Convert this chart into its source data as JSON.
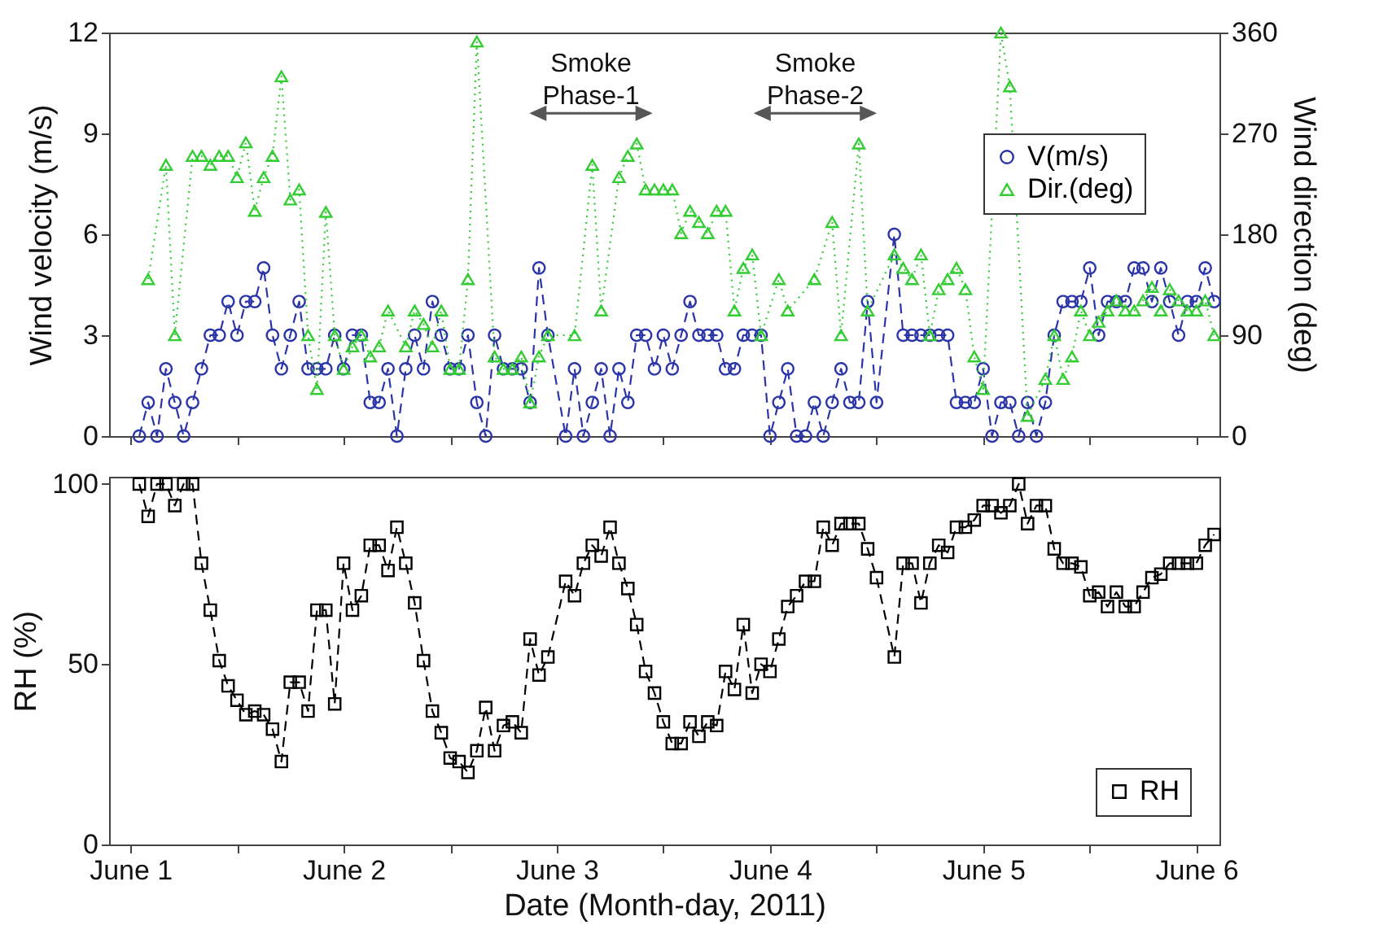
{
  "chart_data": [
    {
      "type": "line",
      "ylabel": "Wind velocity (m/s)",
      "y2label": "Wind direction (deg)",
      "xlim": [
        "2011-05-31T21:36",
        "2011-06-06T02:36"
      ],
      "xticks": [
        {
          "value": "2011-06-01T00:00",
          "label": null
        },
        {
          "value": "2011-06-01T12:00",
          "label": null
        },
        {
          "value": "2011-06-02T00:00",
          "label": null
        },
        {
          "value": "2011-06-02T12:00",
          "label": null
        },
        {
          "value": "2011-06-03T00:00",
          "label": null
        },
        {
          "value": "2011-06-03T12:00",
          "label": null
        },
        {
          "value": "2011-06-04T00:00",
          "label": null
        },
        {
          "value": "2011-06-04T12:00",
          "label": null
        },
        {
          "value": "2011-06-05T00:00",
          "label": null
        },
        {
          "value": "2011-06-05T12:00",
          "label": null
        },
        {
          "value": "2011-06-06T00:00",
          "label": null
        }
      ],
      "ylim": [
        0,
        12
      ],
      "yticks": [
        0,
        3,
        6,
        9,
        12
      ],
      "y2lim": [
        0,
        360
      ],
      "y2ticks": [
        0,
        90,
        180,
        270,
        360
      ],
      "tick_labels": "y",
      "legend": "right",
      "grid": false,
      "annotations": [
        "Smoke Phase-1",
        "Smoke Phase-2"
      ],
      "series": [
        {
          "name": "V(m/s)",
          "color": "#2b35a8",
          "marker": "circle",
          "line_style": "dashed",
          "x": [
            "2011-06-01T01:00",
            "2011-06-01T02:00",
            "2011-06-01T03:00",
            "2011-06-01T04:00",
            "2011-06-01T05:00",
            "2011-06-01T06:00",
            "2011-06-01T07:00",
            "2011-06-01T08:00",
            "2011-06-01T09:00",
            "2011-06-01T10:00",
            "2011-06-01T11:00",
            "2011-06-01T12:00",
            "2011-06-01T13:00",
            "2011-06-01T14:00",
            "2011-06-01T15:00",
            "2011-06-01T16:00",
            "2011-06-01T17:00",
            "2011-06-01T18:00",
            "2011-06-01T19:00",
            "2011-06-01T20:00",
            "2011-06-01T21:00",
            "2011-06-01T22:00",
            "2011-06-01T23:00",
            "2011-06-02T00:00",
            "2011-06-02T01:00",
            "2011-06-02T02:00",
            "2011-06-02T03:00",
            "2011-06-02T04:00",
            "2011-06-02T05:00",
            "2011-06-02T06:00",
            "2011-06-02T07:00",
            "2011-06-02T08:00",
            "2011-06-02T09:00",
            "2011-06-02T10:00",
            "2011-06-02T11:00",
            "2011-06-02T12:00",
            "2011-06-02T13:00",
            "2011-06-02T14:00",
            "2011-06-02T15:00",
            "2011-06-02T16:00",
            "2011-06-02T17:00",
            "2011-06-02T18:00",
            "2011-06-02T19:00",
            "2011-06-02T20:00",
            "2011-06-02T21:00",
            "2011-06-02T22:00",
            "2011-06-02T23:00",
            "2011-06-03T01:00",
            "2011-06-03T02:00",
            "2011-06-03T03:00",
            "2011-06-03T04:00",
            "2011-06-03T05:00",
            "2011-06-03T06:00",
            "2011-06-03T07:00",
            "2011-06-03T08:00",
            "2011-06-03T09:00",
            "2011-06-03T10:00",
            "2011-06-03T11:00",
            "2011-06-03T12:00",
            "2011-06-03T13:00",
            "2011-06-03T14:00",
            "2011-06-03T15:00",
            "2011-06-03T16:00",
            "2011-06-03T17:00",
            "2011-06-03T18:00",
            "2011-06-03T19:00",
            "2011-06-03T20:00",
            "2011-06-03T21:00",
            "2011-06-03T22:00",
            "2011-06-03T23:00",
            "2011-06-04T00:00",
            "2011-06-04T01:00",
            "2011-06-04T02:00",
            "2011-06-04T03:00",
            "2011-06-04T04:00",
            "2011-06-04T05:00",
            "2011-06-04T06:00",
            "2011-06-04T07:00",
            "2011-06-04T08:00",
            "2011-06-04T09:00",
            "2011-06-04T10:00",
            "2011-06-04T11:00",
            "2011-06-04T12:00",
            "2011-06-04T14:00",
            "2011-06-04T15:00",
            "2011-06-04T16:00",
            "2011-06-04T17:00",
            "2011-06-04T18:00",
            "2011-06-04T19:00",
            "2011-06-04T20:00",
            "2011-06-04T21:00",
            "2011-06-04T22:00",
            "2011-06-04T23:00",
            "2011-06-05T00:00",
            "2011-06-05T01:00",
            "2011-06-05T02:00",
            "2011-06-05T03:00",
            "2011-06-05T04:00",
            "2011-06-05T05:00",
            "2011-06-05T06:00",
            "2011-06-05T07:00",
            "2011-06-05T08:00",
            "2011-06-05T09:00",
            "2011-06-05T10:00",
            "2011-06-05T11:00",
            "2011-06-05T12:00",
            "2011-06-05T13:00",
            "2011-06-05T14:00",
            "2011-06-05T15:00",
            "2011-06-05T16:00",
            "2011-06-05T17:00",
            "2011-06-05T18:00",
            "2011-06-05T19:00",
            "2011-06-05T20:00",
            "2011-06-05T21:00",
            "2011-06-05T22:00",
            "2011-06-05T23:00",
            "2011-06-06T00:00",
            "2011-06-06T01:00",
            "2011-06-06T02:00"
          ],
          "values": [
            0,
            1,
            0,
            2,
            1,
            0,
            1,
            2,
            3,
            3,
            4,
            3,
            4,
            4,
            5,
            3,
            2,
            3,
            4,
            2,
            2,
            2,
            3,
            2,
            3,
            3,
            1,
            1,
            2,
            0,
            2,
            3,
            2,
            4,
            3,
            2,
            2,
            3,
            1,
            0,
            3,
            2,
            2,
            2,
            1,
            5,
            3,
            0,
            2,
            0,
            1,
            2,
            0,
            2,
            1,
            3,
            3,
            2,
            3,
            2,
            3,
            4,
            3,
            3,
            3,
            2,
            2,
            3,
            3,
            3,
            0,
            1,
            2,
            0,
            0,
            1,
            0,
            1,
            2,
            1,
            1,
            4,
            1,
            6,
            3,
            3,
            3,
            3,
            3,
            3,
            1,
            1,
            1,
            2,
            0,
            1,
            1,
            0,
            1,
            0,
            1,
            3,
            4,
            4,
            4,
            5,
            3,
            4,
            4,
            4,
            5,
            5,
            4,
            5,
            4,
            3,
            4,
            4,
            5,
            4
          ]
        },
        {
          "name": "Dir.(deg)",
          "color": "#33cc33",
          "marker": "triangle",
          "line_style": "dotted",
          "axis": "y2",
          "x": [
            "2011-06-01T02:00",
            "2011-06-01T04:00",
            "2011-06-01T05:00",
            "2011-06-01T07:00",
            "2011-06-01T08:00",
            "2011-06-01T09:00",
            "2011-06-01T10:00",
            "2011-06-01T11:00",
            "2011-06-01T12:00",
            "2011-06-01T13:00",
            "2011-06-01T14:00",
            "2011-06-01T15:00",
            "2011-06-01T16:00",
            "2011-06-01T17:00",
            "2011-06-01T18:00",
            "2011-06-01T19:00",
            "2011-06-01T20:00",
            "2011-06-01T21:00",
            "2011-06-01T22:00",
            "2011-06-01T23:00",
            "2011-06-02T00:00",
            "2011-06-02T01:00",
            "2011-06-02T02:00",
            "2011-06-02T03:00",
            "2011-06-02T04:00",
            "2011-06-02T05:00",
            "2011-06-02T07:00",
            "2011-06-02T08:00",
            "2011-06-02T09:00",
            "2011-06-02T10:00",
            "2011-06-02T11:00",
            "2011-06-02T12:00",
            "2011-06-02T13:00",
            "2011-06-02T14:00",
            "2011-06-02T15:00",
            "2011-06-02T17:00",
            "2011-06-02T18:00",
            "2011-06-02T19:00",
            "2011-06-02T20:00",
            "2011-06-02T21:00",
            "2011-06-02T22:00",
            "2011-06-02T23:00",
            "2011-06-03T02:00",
            "2011-06-03T04:00",
            "2011-06-03T05:00",
            "2011-06-03T07:00",
            "2011-06-03T08:00",
            "2011-06-03T09:00",
            "2011-06-03T10:00",
            "2011-06-03T11:00",
            "2011-06-03T12:00",
            "2011-06-03T13:00",
            "2011-06-03T14:00",
            "2011-06-03T15:00",
            "2011-06-03T16:00",
            "2011-06-03T17:00",
            "2011-06-03T18:00",
            "2011-06-03T19:00",
            "2011-06-03T20:00",
            "2011-06-03T21:00",
            "2011-06-03T22:00",
            "2011-06-03T23:00",
            "2011-06-04T01:00",
            "2011-06-04T02:00",
            "2011-06-04T05:00",
            "2011-06-04T07:00",
            "2011-06-04T08:00",
            "2011-06-04T10:00",
            "2011-06-04T11:00",
            "2011-06-04T14:00",
            "2011-06-04T15:00",
            "2011-06-04T16:00",
            "2011-06-04T17:00",
            "2011-06-04T18:00",
            "2011-06-04T19:00",
            "2011-06-04T20:00",
            "2011-06-04T21:00",
            "2011-06-04T22:00",
            "2011-06-04T23:00",
            "2011-06-05T00:00",
            "2011-06-05T02:00",
            "2011-06-05T03:00",
            "2011-06-05T05:00",
            "2011-06-05T07:00",
            "2011-06-05T08:00",
            "2011-06-05T09:00",
            "2011-06-05T10:00",
            "2011-06-05T11:00",
            "2011-06-05T12:00",
            "2011-06-05T13:00",
            "2011-06-05T14:00",
            "2011-06-05T15:00",
            "2011-06-05T16:00",
            "2011-06-05T17:00",
            "2011-06-05T18:00",
            "2011-06-05T19:00",
            "2011-06-05T20:00",
            "2011-06-05T21:00",
            "2011-06-05T22:00",
            "2011-06-05T23:00",
            "2011-06-06T00:00",
            "2011-06-06T01:00",
            "2011-06-06T02:00"
          ],
          "values": [
            140,
            242,
            90,
            250,
            250,
            242,
            250,
            250,
            231,
            262,
            201,
            231,
            250,
            321,
            211,
            220,
            90,
            42,
            200,
            90,
            60,
            80,
            90,
            71,
            80,
            112,
            80,
            112,
            100,
            80,
            112,
            60,
            60,
            140,
            352,
            71,
            60,
            60,
            71,
            30,
            71,
            90,
            90,
            242,
            112,
            231,
            250,
            261,
            220,
            220,
            220,
            220,
            181,
            201,
            191,
            181,
            201,
            201,
            112,
            150,
            162,
            90,
            140,
            112,
            140,
            191,
            90,
            261,
            112,
            162,
            150,
            140,
            162,
            90,
            131,
            140,
            150,
            131,
            71,
            42,
            360,
            312,
            18,
            51,
            90,
            51,
            71,
            112,
            90,
            102,
            112,
            121,
            112,
            112,
            121,
            133,
            112,
            131,
            121,
            112,
            112,
            121,
            90
          ]
        }
      ]
    },
    {
      "type": "line",
      "xlabel": "Date (Month-day, 2011)",
      "ylabel": "RH (%)",
      "xlim": [
        "2011-05-31T21:36",
        "2011-06-06T02:36"
      ],
      "xticks": [
        {
          "value": "2011-06-01T00:00",
          "label": "June 1"
        },
        {
          "value": "2011-06-01T12:00",
          "label": null
        },
        {
          "value": "2011-06-02T00:00",
          "label": "June 2"
        },
        {
          "value": "2011-06-02T12:00",
          "label": null
        },
        {
          "value": "2011-06-03T00:00",
          "label": "June 3"
        },
        {
          "value": "2011-06-03T12:00",
          "label": null
        },
        {
          "value": "2011-06-04T00:00",
          "label": "June 4"
        },
        {
          "value": "2011-06-04T12:00",
          "label": null
        },
        {
          "value": "2011-06-05T00:00",
          "label": "June 5"
        },
        {
          "value": "2011-06-05T12:00",
          "label": null
        },
        {
          "value": "2011-06-06T00:00",
          "label": "June 6"
        }
      ],
      "ylim": [
        0,
        102
      ],
      "yticks": [
        0,
        50,
        100
      ],
      "legend": "bottom right",
      "grid": false,
      "series": [
        {
          "name": "RH",
          "color": "#000000",
          "marker": "square",
          "line_style": "dashed",
          "x": [
            "2011-06-01T01:00",
            "2011-06-01T02:00",
            "2011-06-01T03:00",
            "2011-06-01T04:00",
            "2011-06-01T05:00",
            "2011-06-01T06:00",
            "2011-06-01T07:00",
            "2011-06-01T08:00",
            "2011-06-01T09:00",
            "2011-06-01T10:00",
            "2011-06-01T11:00",
            "2011-06-01T12:00",
            "2011-06-01T13:00",
            "2011-06-01T14:00",
            "2011-06-01T15:00",
            "2011-06-01T16:00",
            "2011-06-01T17:00",
            "2011-06-01T18:00",
            "2011-06-01T19:00",
            "2011-06-01T20:00",
            "2011-06-01T21:00",
            "2011-06-01T22:00",
            "2011-06-01T23:00",
            "2011-06-02T00:00",
            "2011-06-02T01:00",
            "2011-06-02T02:00",
            "2011-06-02T03:00",
            "2011-06-02T04:00",
            "2011-06-02T05:00",
            "2011-06-02T06:00",
            "2011-06-02T07:00",
            "2011-06-02T08:00",
            "2011-06-02T09:00",
            "2011-06-02T10:00",
            "2011-06-02T11:00",
            "2011-06-02T12:00",
            "2011-06-02T13:00",
            "2011-06-02T14:00",
            "2011-06-02T15:00",
            "2011-06-02T16:00",
            "2011-06-02T17:00",
            "2011-06-02T18:00",
            "2011-06-02T19:00",
            "2011-06-02T20:00",
            "2011-06-02T21:00",
            "2011-06-02T22:00",
            "2011-06-02T23:00",
            "2011-06-03T01:00",
            "2011-06-03T02:00",
            "2011-06-03T03:00",
            "2011-06-03T04:00",
            "2011-06-03T05:00",
            "2011-06-03T06:00",
            "2011-06-03T07:00",
            "2011-06-03T08:00",
            "2011-06-03T09:00",
            "2011-06-03T10:00",
            "2011-06-03T11:00",
            "2011-06-03T12:00",
            "2011-06-03T13:00",
            "2011-06-03T14:00",
            "2011-06-03T15:00",
            "2011-06-03T16:00",
            "2011-06-03T17:00",
            "2011-06-03T18:00",
            "2011-06-03T19:00",
            "2011-06-03T20:00",
            "2011-06-03T21:00",
            "2011-06-03T22:00",
            "2011-06-03T23:00",
            "2011-06-04T00:00",
            "2011-06-04T01:00",
            "2011-06-04T02:00",
            "2011-06-04T03:00",
            "2011-06-04T04:00",
            "2011-06-04T05:00",
            "2011-06-04T06:00",
            "2011-06-04T07:00",
            "2011-06-04T08:00",
            "2011-06-04T09:00",
            "2011-06-04T10:00",
            "2011-06-04T11:00",
            "2011-06-04T12:00",
            "2011-06-04T14:00",
            "2011-06-04T15:00",
            "2011-06-04T16:00",
            "2011-06-04T17:00",
            "2011-06-04T18:00",
            "2011-06-04T19:00",
            "2011-06-04T20:00",
            "2011-06-04T21:00",
            "2011-06-04T22:00",
            "2011-06-04T23:00",
            "2011-06-05T00:00",
            "2011-06-05T01:00",
            "2011-06-05T02:00",
            "2011-06-05T03:00",
            "2011-06-05T04:00",
            "2011-06-05T05:00",
            "2011-06-05T06:00",
            "2011-06-05T07:00",
            "2011-06-05T08:00",
            "2011-06-05T09:00",
            "2011-06-05T10:00",
            "2011-06-05T11:00",
            "2011-06-05T12:00",
            "2011-06-05T13:00",
            "2011-06-05T14:00",
            "2011-06-05T15:00",
            "2011-06-05T16:00",
            "2011-06-05T17:00",
            "2011-06-05T18:00",
            "2011-06-05T19:00",
            "2011-06-05T20:00",
            "2011-06-05T21:00",
            "2011-06-05T22:00",
            "2011-06-05T23:00",
            "2011-06-06T00:00",
            "2011-06-06T01:00",
            "2011-06-06T02:00"
          ],
          "values": [
            100,
            91,
            100,
            100,
            94,
            100,
            100,
            78,
            65,
            51,
            44,
            40,
            36,
            37,
            36,
            32,
            23,
            45,
            45,
            37,
            65,
            65,
            39,
            78,
            65,
            69,
            83,
            83,
            76,
            88,
            78,
            67,
            51,
            37,
            31,
            24,
            23,
            20,
            26,
            38,
            26,
            33,
            34,
            31,
            57,
            47,
            52,
            73,
            69,
            78,
            83,
            80,
            88,
            78,
            71,
            61,
            48,
            42,
            34,
            28,
            28,
            34,
            30,
            34,
            33,
            48,
            43,
            61,
            42,
            50,
            48,
            57,
            66,
            69,
            73,
            73,
            88,
            83,
            89,
            89,
            89,
            82,
            74,
            52,
            78,
            78,
            67,
            78,
            83,
            81,
            88,
            88,
            90,
            94,
            94,
            92,
            94,
            100,
            89,
            94,
            94,
            82,
            78,
            78,
            77,
            69,
            70,
            66,
            70,
            66,
            66,
            70,
            74,
            75,
            78,
            78,
            78,
            78,
            83,
            86
          ]
        }
      ]
    }
  ]
}
